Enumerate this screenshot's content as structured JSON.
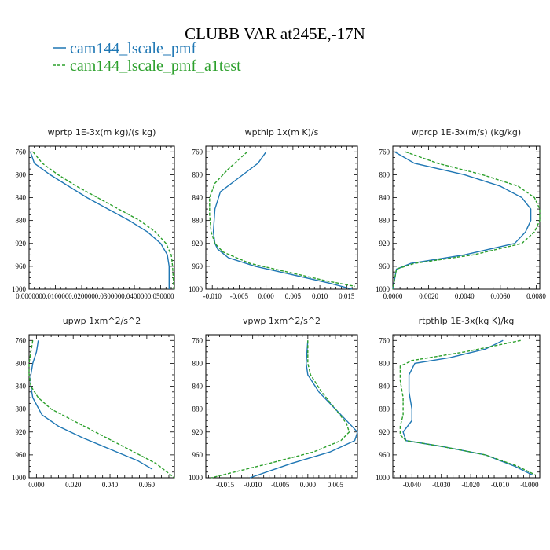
{
  "figure": {
    "title": "CLUBB VAR at245E,-17N",
    "legend": [
      {
        "name": "cam144_lscale_pmf",
        "color": "#1f77b4",
        "dash": false
      },
      {
        "name": "cam144_lscale_pmf_a1test",
        "color": "#2ca02c",
        "dash": true
      }
    ]
  },
  "chart_data": [
    {
      "type": "line",
      "title": "wprtp  1E-3x(m kg)/(s kg)",
      "xlim": [
        0.0,
        0.0552
      ],
      "ylim": [
        1000,
        750
      ],
      "xticks": [
        0.0,
        0.01,
        0.02,
        0.03,
        0.04,
        0.05
      ],
      "xtick_labels": [
        "0.000000",
        "0.010000",
        "0.020000",
        "0.030000",
        "0.040000",
        "0.050000"
      ],
      "yticks": [
        760,
        800,
        840,
        880,
        920,
        960,
        1000
      ],
      "ytick_labels": [
        "760",
        "800",
        "840",
        "880",
        "920",
        "960",
        "1000"
      ],
      "series": [
        {
          "name": "cam144_lscale_pmf",
          "color": "#1f77b4",
          "x": [
            0.0005,
            0.002,
            0.008,
            0.015,
            0.022,
            0.03,
            0.038,
            0.045,
            0.05,
            0.0525,
            0.0532,
            0.0532
          ],
          "y": [
            760,
            780,
            800,
            820,
            840,
            860,
            880,
            900,
            920,
            940,
            960,
            1000
          ]
        },
        {
          "name": "cam144_lscale_pmf_a1test",
          "color": "#2ca02c",
          "x": [
            0.0015,
            0.005,
            0.011,
            0.018,
            0.026,
            0.034,
            0.042,
            0.048,
            0.052,
            0.054,
            0.0545,
            0.055
          ],
          "y": [
            760,
            780,
            800,
            820,
            840,
            860,
            880,
            900,
            920,
            940,
            960,
            1000
          ]
        }
      ]
    },
    {
      "type": "line",
      "title": "wpthlp  1x(m K)/s",
      "xlim": [
        -0.0112,
        0.017
      ],
      "ylim": [
        1000,
        750
      ],
      "xticks": [
        -0.01,
        -0.005,
        0.0,
        0.005,
        0.01,
        0.015
      ],
      "xtick_labels": [
        "-0.010",
        "-0.005",
        "0.000",
        "0.005",
        "0.010",
        "0.015"
      ],
      "yticks": [
        760,
        800,
        840,
        880,
        920,
        960,
        1000
      ],
      "ytick_labels": [
        "760",
        "800",
        "840",
        "880",
        "920",
        "960",
        "1000"
      ],
      "series": [
        {
          "name": "cam144_lscale_pmf",
          "color": "#1f77b4",
          "x": [
            0.0,
            -0.0015,
            -0.005,
            -0.0085,
            -0.0095,
            -0.0098,
            -0.0095,
            -0.009,
            -0.007,
            -0.002,
            0.005,
            0.012,
            0.016
          ],
          "y": [
            760,
            780,
            805,
            830,
            860,
            900,
            920,
            930,
            945,
            960,
            975,
            990,
            1000
          ]
        },
        {
          "name": "cam144_lscale_pmf_a1test",
          "color": "#2ca02c",
          "x": [
            -0.0035,
            -0.007,
            -0.0095,
            -0.0105,
            -0.0105,
            -0.0102,
            -0.0095,
            -0.008,
            -0.003,
            0.004,
            0.011,
            0.0165
          ],
          "y": [
            760,
            790,
            815,
            840,
            870,
            900,
            920,
            935,
            955,
            970,
            985,
            995
          ]
        }
      ]
    },
    {
      "type": "line",
      "title": "wprcp  1E-3x(m/s) (kg/kg)",
      "xlim": [
        0.0,
        0.0082
      ],
      "ylim": [
        1000,
        750
      ],
      "xticks": [
        0.0,
        0.002,
        0.004,
        0.006,
        0.008
      ],
      "xtick_labels": [
        "0.0000",
        "0.0020",
        "0.0040",
        "0.0060",
        "0.0080"
      ],
      "yticks": [
        760,
        800,
        840,
        880,
        920,
        960,
        1000
      ],
      "ytick_labels": [
        "760",
        "800",
        "840",
        "880",
        "920",
        "960",
        "1000"
      ],
      "series": [
        {
          "name": "cam144_lscale_pmf",
          "color": "#1f77b4",
          "x": [
            0.0001,
            0.0012,
            0.004,
            0.006,
            0.0072,
            0.0077,
            0.0077,
            0.0074,
            0.0068,
            0.004,
            0.001,
            0.0002,
            0.0
          ],
          "y": [
            760,
            780,
            800,
            820,
            840,
            860,
            880,
            900,
            920,
            940,
            955,
            965,
            1000
          ]
        },
        {
          "name": "cam144_lscale_pmf_a1test",
          "color": "#2ca02c",
          "x": [
            0.0007,
            0.0025,
            0.005,
            0.007,
            0.0079,
            0.0082,
            0.0082,
            0.0079,
            0.0072,
            0.0045,
            0.0012,
            0.0002,
            0.0
          ],
          "y": [
            760,
            780,
            800,
            820,
            840,
            860,
            880,
            900,
            920,
            940,
            955,
            965,
            1000
          ]
        }
      ]
    },
    {
      "type": "line",
      "title": "upwp  1xm^2/s^2",
      "xlim": [
        -0.004,
        0.075
      ],
      "ylim": [
        1000,
        750
      ],
      "xticks": [
        0.0,
        0.02,
        0.04,
        0.06
      ],
      "xtick_labels": [
        "0.000",
        "0.020",
        "0.040",
        "0.060"
      ],
      "yticks": [
        760,
        800,
        840,
        880,
        920,
        960,
        1000
      ],
      "ytick_labels": [
        "760",
        "800",
        "840",
        "880",
        "920",
        "960",
        "1000"
      ],
      "series": [
        {
          "name": "cam144_lscale_pmf",
          "color": "#1f77b4",
          "x": [
            0.001,
            0.0,
            -0.002,
            -0.003,
            -0.003,
            -0.002,
            0.003,
            0.012,
            0.025,
            0.04,
            0.055,
            0.063
          ],
          "y": [
            760,
            780,
            800,
            820,
            840,
            860,
            890,
            910,
            930,
            950,
            970,
            985
          ]
        },
        {
          "name": "cam144_lscale_pmf_a1test",
          "color": "#2ca02c",
          "x": [
            -0.002,
            -0.003,
            -0.004,
            -0.004,
            -0.003,
            0.001,
            0.008,
            0.02,
            0.035,
            0.05,
            0.065,
            0.075
          ],
          "y": [
            760,
            780,
            800,
            820,
            840,
            860,
            880,
            900,
            925,
            950,
            975,
            1000
          ]
        }
      ]
    },
    {
      "type": "line",
      "title": "vpwp  1xm^2/s^2",
      "xlim": [
        -0.0185,
        0.009
      ],
      "ylim": [
        1000,
        750
      ],
      "xticks": [
        -0.015,
        -0.01,
        -0.005,
        0.0,
        0.005
      ],
      "xtick_labels": [
        "-0.015",
        "-0.010",
        "-0.005",
        "0.000",
        "0.005"
      ],
      "yticks": [
        760,
        800,
        840,
        880,
        920,
        960,
        1000
      ],
      "ytick_labels": [
        "760",
        "800",
        "840",
        "880",
        "920",
        "960",
        "1000"
      ],
      "series": [
        {
          "name": "cam144_lscale_pmf",
          "color": "#1f77b4",
          "x": [
            0.0,
            -0.0003,
            0.0,
            0.002,
            0.005,
            0.0075,
            0.009,
            0.0085,
            0.004,
            -0.003,
            -0.0105
          ],
          "y": [
            760,
            800,
            820,
            850,
            880,
            905,
            920,
            935,
            955,
            975,
            1000
          ]
        },
        {
          "name": "cam144_lscale_pmf_a1test",
          "color": "#2ca02c",
          "x": [
            0.0,
            0.0,
            0.0005,
            0.0025,
            0.005,
            0.007,
            0.0075,
            0.006,
            0.001,
            -0.007,
            -0.0175
          ],
          "y": [
            760,
            800,
            820,
            850,
            880,
            905,
            920,
            935,
            955,
            975,
            1000
          ]
        }
      ]
    },
    {
      "type": "line",
      "title": "rtpthlp  1E-3x(kg K)/kg",
      "xlim": [
        -0.0465,
        0.0035
      ],
      "ylim": [
        1000,
        750
      ],
      "xticks": [
        -0.04,
        -0.03,
        -0.02,
        -0.01,
        0.0
      ],
      "xtick_labels": [
        "-0.040",
        "-0.030",
        "-0.020",
        "-0.010",
        "-0.000"
      ],
      "yticks": [
        760,
        800,
        840,
        880,
        920,
        960,
        1000
      ],
      "ytick_labels": [
        "760",
        "800",
        "840",
        "880",
        "920",
        "960",
        "1000"
      ],
      "series": [
        {
          "name": "cam144_lscale_pmf",
          "color": "#1f77b4",
          "x": [
            -0.009,
            -0.015,
            -0.027,
            -0.039,
            -0.041,
            -0.041,
            -0.04,
            -0.04,
            -0.043,
            -0.042,
            -0.03,
            -0.015,
            -0.005,
            0.001
          ],
          "y": [
            760,
            775,
            790,
            800,
            820,
            850,
            880,
            900,
            920,
            935,
            945,
            960,
            980,
            995
          ]
        },
        {
          "name": "cam144_lscale_pmf_a1test",
          "color": "#2ca02c",
          "x": [
            -0.003,
            -0.022,
            -0.04,
            -0.044,
            -0.044,
            -0.043,
            -0.043,
            -0.044,
            -0.044,
            -0.042,
            -0.03,
            -0.015,
            -0.004,
            0.002
          ],
          "y": [
            760,
            780,
            795,
            805,
            830,
            860,
            890,
            910,
            925,
            935,
            945,
            960,
            980,
            995
          ]
        }
      ]
    }
  ]
}
